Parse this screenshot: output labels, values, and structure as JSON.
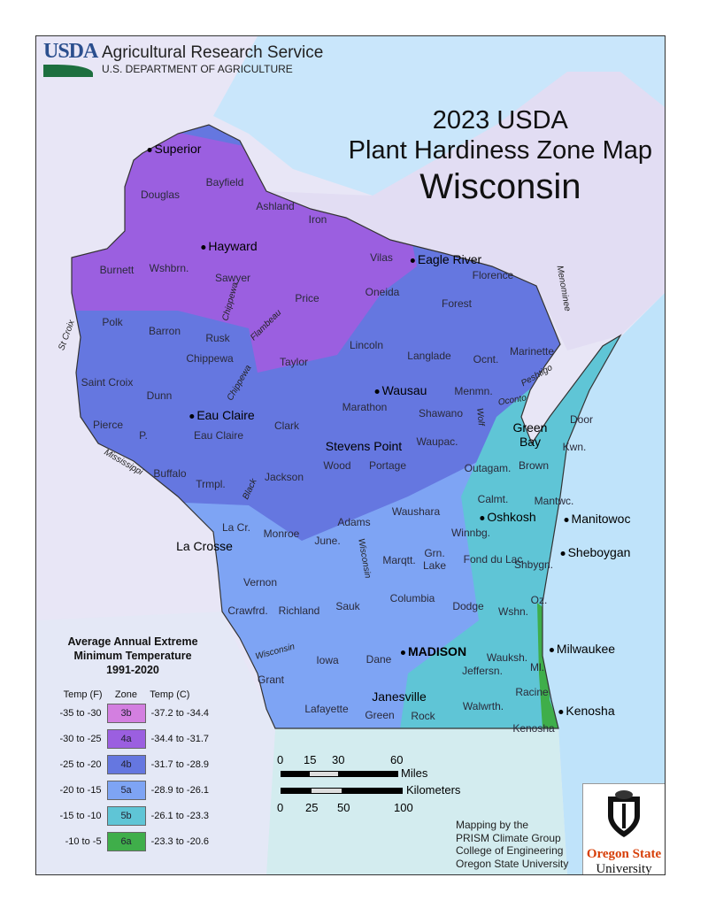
{
  "header": {
    "logo_text": "USDA",
    "agency": "Agricultural Research Service",
    "department": "U.S. DEPARTMENT OF AGRICULTURE"
  },
  "title": {
    "line1": "2023 USDA",
    "line2": "Plant Hardiness Zone Map",
    "line3": "Wisconsin"
  },
  "cities": [
    "Superior",
    "Hayward",
    "Eagle River",
    "Wausau",
    "Eau Claire",
    "Stevens Point",
    "Green Bay",
    "Oshkosh",
    "Manitowoc",
    "Sheboygan",
    "La Crosse",
    "MADISON",
    "Milwaukee",
    "Janesville",
    "Kenosha"
  ],
  "counties": [
    "Douglas",
    "Bayfield",
    "Ashland",
    "Iron",
    "Vilas",
    "Florence",
    "Burnett",
    "Wshbrn.",
    "Sawyer",
    "Price",
    "Oneida",
    "Forest",
    "Polk",
    "Barron",
    "Rusk",
    "Lincoln",
    "Langlade",
    "Ocnt.",
    "Marinette",
    "Taylor",
    "Chippewa",
    "Saint Croix",
    "Dunn",
    "Menmn.",
    "Marathon",
    "Shawano",
    "Door",
    "Pierce",
    "P.",
    "Eau Claire",
    "Clark",
    "Waupac.",
    "Kwn.",
    "Brown",
    "Buffalo",
    "Wood",
    "Portage",
    "Outagam.",
    "Trmpl.",
    "Jackson",
    "Calmt.",
    "Mantwc.",
    "Waushara",
    "Adams",
    "Winnbg.",
    "La Cr.",
    "Monroe",
    "June.",
    "Marqtt.",
    "Grn. Lake",
    "Fond du Lac",
    "Shbygn.",
    "Vernon",
    "Crawfrd.",
    "Richland",
    "Sauk",
    "Columbia",
    "Dodge",
    "Wshn.",
    "Oz.",
    "Dane",
    "Jeffersn.",
    "Wauksh.",
    "Ml.",
    "Iowa",
    "Grant",
    "Lafayette",
    "Green",
    "Rock",
    "Walwrth.",
    "Racine",
    "Kenosha"
  ],
  "rivers": [
    "St Croix",
    "Chippewa",
    "Flambeau",
    "Chippewa",
    "Mississippi",
    "Black",
    "Wisconsin",
    "Wisconsin",
    "Wolf",
    "Oconto",
    "Peshtigo",
    "Menominee"
  ],
  "legend": {
    "title": [
      "Average Annual Extreme",
      "Minimum Temperature",
      "1991-2020"
    ],
    "headers": {
      "temp_f": "Temp (F)",
      "zone": "Zone",
      "temp_c": "Temp (C)"
    },
    "rows": [
      {
        "f": "-35 to -30",
        "zone": "3b",
        "c": "-37.2 to -34.4",
        "color": "#d37fe0"
      },
      {
        "f": "-30 to -25",
        "zone": "4a",
        "c": "-34.4 to -31.7",
        "color": "#9b5fe0"
      },
      {
        "f": "-25 to -20",
        "zone": "4b",
        "c": "-31.7 to -28.9",
        "color": "#6577e0"
      },
      {
        "f": "-20 to -15",
        "zone": "5a",
        "c": "-28.9 to -26.1",
        "color": "#7ea4f4"
      },
      {
        "f": "-15 to -10",
        "zone": "5b",
        "c": "-26.1 to -23.3",
        "color": "#5fc5d6"
      },
      {
        "f": "-10 to -5",
        "zone": "6a",
        "c": "-23.3 to -20.6",
        "color": "#3fae4a"
      }
    ]
  },
  "scale": {
    "miles_ticks": [
      "0",
      "15",
      "30",
      "60"
    ],
    "miles_label": "Miles",
    "km_label": "Kilometers",
    "km_ticks": [
      "0",
      "25",
      "50",
      "100"
    ]
  },
  "credits": [
    "Mapping by the",
    "PRISM Climate Group",
    "College of Engineering",
    "Oregon State University"
  ],
  "osu_logo": {
    "line1": "Oregon State",
    "line2": "University"
  }
}
